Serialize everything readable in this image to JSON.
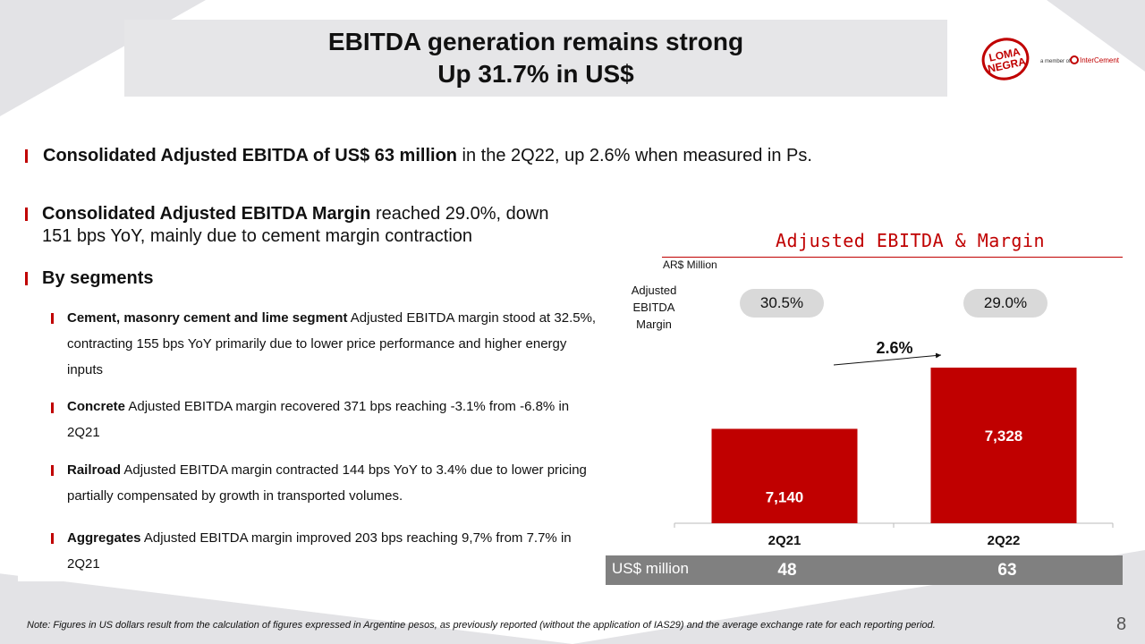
{
  "header": {
    "title_line1": "EBITDA generation remains strong",
    "title_line2": "Up 31.7% in US$"
  },
  "logo": {
    "brand_line1": "LOMA",
    "brand_line2": "NEGRA",
    "member_text": "a member of",
    "parent_brand": "InterCement",
    "brand_color": "#c00000"
  },
  "bullets": {
    "b1_bold": "Consolidated Adjusted EBITDA of US$ 63 million",
    "b1_rest": " in the 2Q22, up 2.6% when measured in Ps.",
    "b2_bold": "Consolidated Adjusted EBITDA Margin",
    "b2_rest_line1": " reached 29.0%, down",
    "b2_line2": "151 bps YoY, mainly due to cement margin contraction",
    "b3": "By segments"
  },
  "segments": [
    {
      "bold": "Cement, masonry cement and lime segment",
      "text": " Adjusted EBITDA margin stood at 32.5%, contracting 155 bps YoY primarily due to lower price performance and higher energy inputs"
    },
    {
      "bold": "Concrete",
      "text": " Adjusted EBITDA margin recovered 371 bps reaching -3.1% from -6.8% in 2Q21"
    },
    {
      "bold": "Railroad",
      "text": " Adjusted EBITDA margin contracted 144 bps YoY to 3.4% due to lower pricing partially compensated by growth in transported volumes."
    },
    {
      "bold": "Aggregates",
      "text": " Adjusted EBITDA margin improved 203 bps reaching 9,7% from 7.7% in 2Q21"
    }
  ],
  "chart_data": {
    "type": "bar",
    "title": "Adjusted EBITDA & Margin",
    "unit_label": "AR$ Million",
    "categories": [
      "2Q21",
      "2Q22"
    ],
    "values": [
      7140,
      7328
    ],
    "value_labels": [
      "7,140",
      "7,328"
    ],
    "margin_label": "Adjusted EBITDA Margin",
    "margins": [
      "30.5%",
      "29.0%"
    ],
    "growth_label": "2.6%",
    "us_row_label": "US$ million",
    "us_values": [
      "48",
      "63"
    ],
    "ylim": [
      0,
      8000
    ],
    "bar_color": "#c00000"
  },
  "footer": {
    "note": "Note: Figures in US dollars result from the calculation of figures expressed in Argentine pesos, as previously reported (without the application of IAS29) and the average exchange rate for each reporting period.",
    "page": "8"
  }
}
